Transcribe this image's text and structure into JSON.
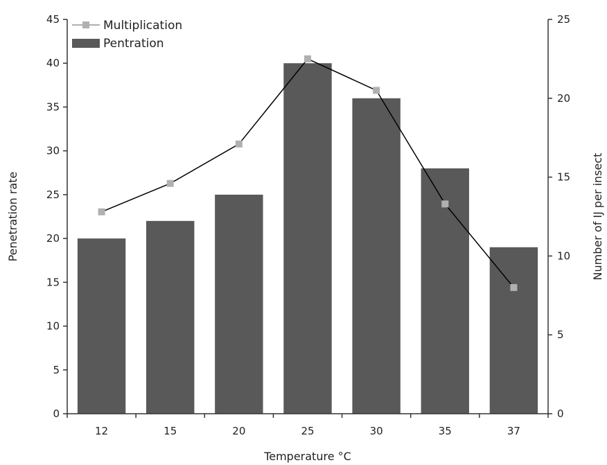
{
  "chart_data": {
    "type": "bar",
    "categories": [
      "12",
      "15",
      "20",
      "25",
      "30",
      "35",
      "37"
    ],
    "xlabel": "Temperature °C",
    "ylabel": "Penetration rate",
    "y2label": "Number of IJ per insect",
    "ylim": [
      0,
      45
    ],
    "y2lim": [
      0,
      25
    ],
    "yticks": [
      "0",
      "5",
      "10",
      "15",
      "20",
      "25",
      "30",
      "35",
      "40",
      "45"
    ],
    "y2ticks": [
      "0",
      "5",
      "10",
      "15",
      "20",
      "25"
    ],
    "grid": false,
    "legend_position": "top-left",
    "series": [
      {
        "name": "Multiplication",
        "type": "line",
        "axis": "right",
        "color": "#b0b0b0",
        "line_color": "#000000",
        "values": [
          12.8,
          14.6,
          17.1,
          22.5,
          20.5,
          13.3,
          8.0
        ]
      },
      {
        "name": "Pentration",
        "type": "bar",
        "axis": "left",
        "color": "#595959",
        "values": [
          20,
          22,
          25,
          40,
          36,
          28,
          19
        ]
      }
    ]
  }
}
